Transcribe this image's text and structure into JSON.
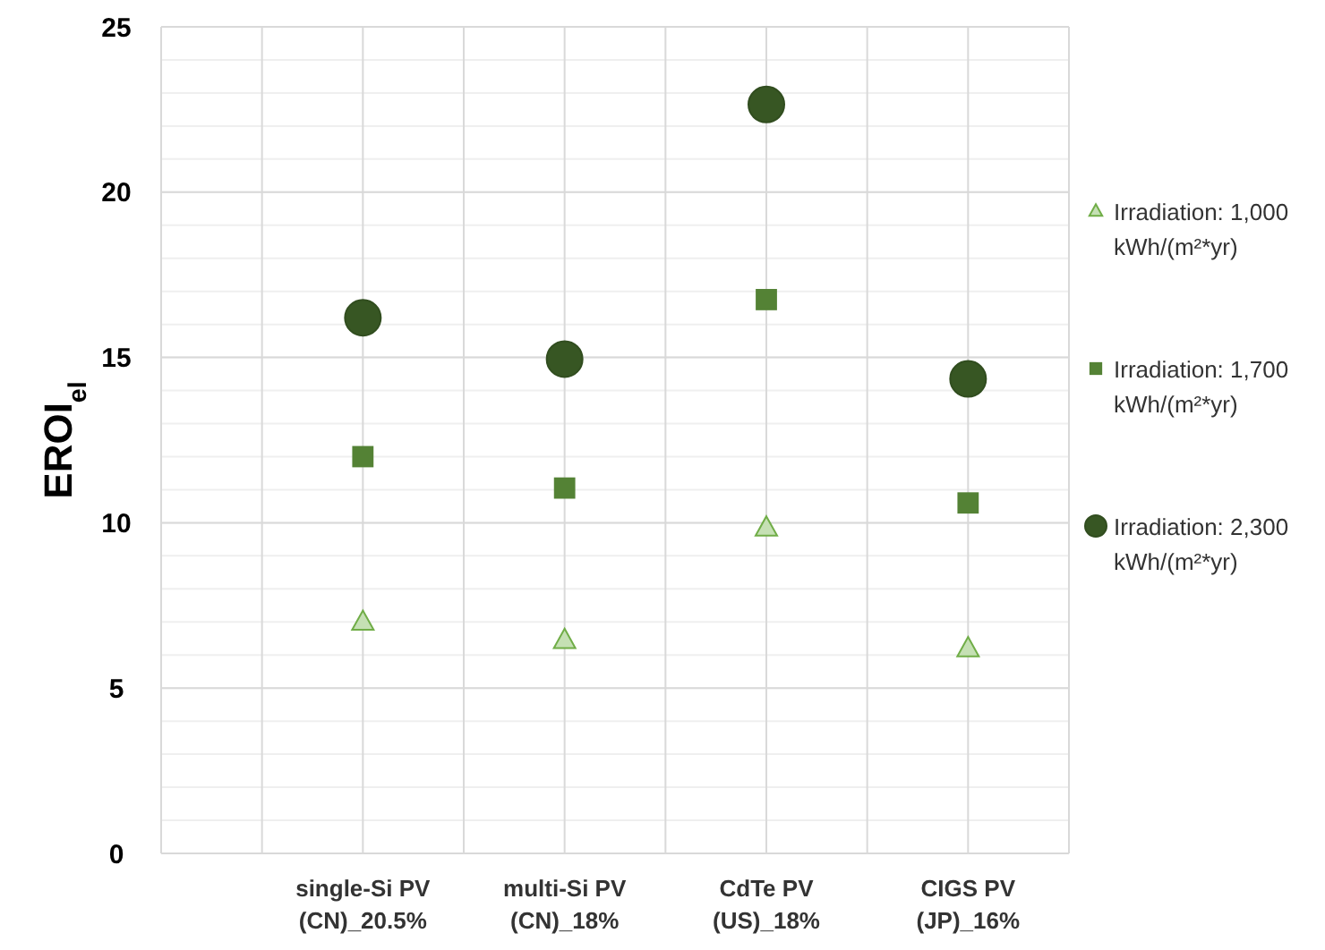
{
  "chart_data": {
    "type": "scatter",
    "ylabel": "EROI$_{el}$",
    "categories": [
      "single-Si PV (CN)_20.5%",
      "multi-Si PV (CN)_18%",
      "CdTe PV (US)_18%",
      "CIGS PV (JP)_16%"
    ],
    "ylim": [
      0,
      25
    ],
    "yticks": [
      0,
      5,
      10,
      15,
      20,
      25
    ],
    "grid": true,
    "legend": "right",
    "series": [
      {
        "name": "Irradiation: 1,000 kWh/(m²*yr)",
        "color": "#c5e0b4",
        "marker": "triangle",
        "values": [
          7.0,
          6.45,
          9.85,
          6.2
        ]
      },
      {
        "name": "Irradiation: 1,700 kWh/(m²*yr)",
        "color": "#548235",
        "marker": "square",
        "values": [
          12.0,
          11.05,
          16.75,
          10.6
        ]
      },
      {
        "name": "Irradiation: 2,300 kWh/(m²*yr)",
        "color": "#375623",
        "marker": "circle",
        "values": [
          16.2,
          14.95,
          22.65,
          14.35
        ]
      }
    ]
  }
}
